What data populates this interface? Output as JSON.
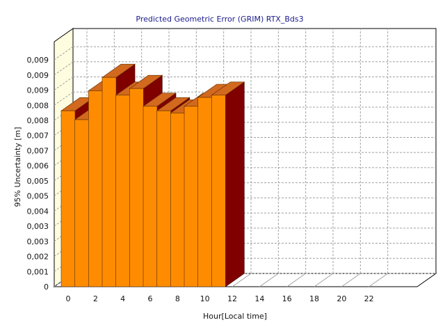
{
  "chart_data": {
    "type": "bar",
    "title": "Predicted Geometric Error (GRIM) RTX_Bds3",
    "xlabel": "Hour[Local time]",
    "ylabel": "95% Uncertainty [m]",
    "x_tick_labels": [
      "0",
      "2",
      "4",
      "6",
      "8",
      "10",
      "12",
      "14",
      "16",
      "18",
      "20",
      "22"
    ],
    "y_tick_labels": [
      "0",
      "0,001",
      "0,002",
      "0,003",
      "0,003",
      "0,004",
      "0,005",
      "0,005",
      "0,006",
      "0,007",
      "0,007",
      "0,008",
      "0,008",
      "0,009",
      "0,009",
      "0,009"
    ],
    "x_range": [
      0,
      24
    ],
    "ylim": [
      0,
      0.011
    ],
    "grid": true,
    "categories": [
      "0",
      "1",
      "2",
      "3",
      "4",
      "5",
      "6",
      "7",
      "8",
      "9",
      "10",
      "11",
      "12",
      "13",
      "14",
      "15",
      "16",
      "17",
      "18",
      "19",
      "20",
      "21",
      "22",
      "23"
    ],
    "values": [
      0.0079,
      0.0075,
      0.0088,
      0.0094,
      0.0086,
      0.0089,
      0.0081,
      0.0079,
      0.0078,
      0.0081,
      0.0085,
      0.0086,
      null,
      null,
      null,
      null,
      null,
      null,
      null,
      null,
      null,
      null,
      null,
      null
    ],
    "colors": {
      "bar_front": "#ff8c00",
      "bar_top": "#d2691e",
      "bar_side": "#800000",
      "wall": "#fffde0",
      "grid": "#a0a0a0",
      "title": "#1a1a8c"
    }
  }
}
